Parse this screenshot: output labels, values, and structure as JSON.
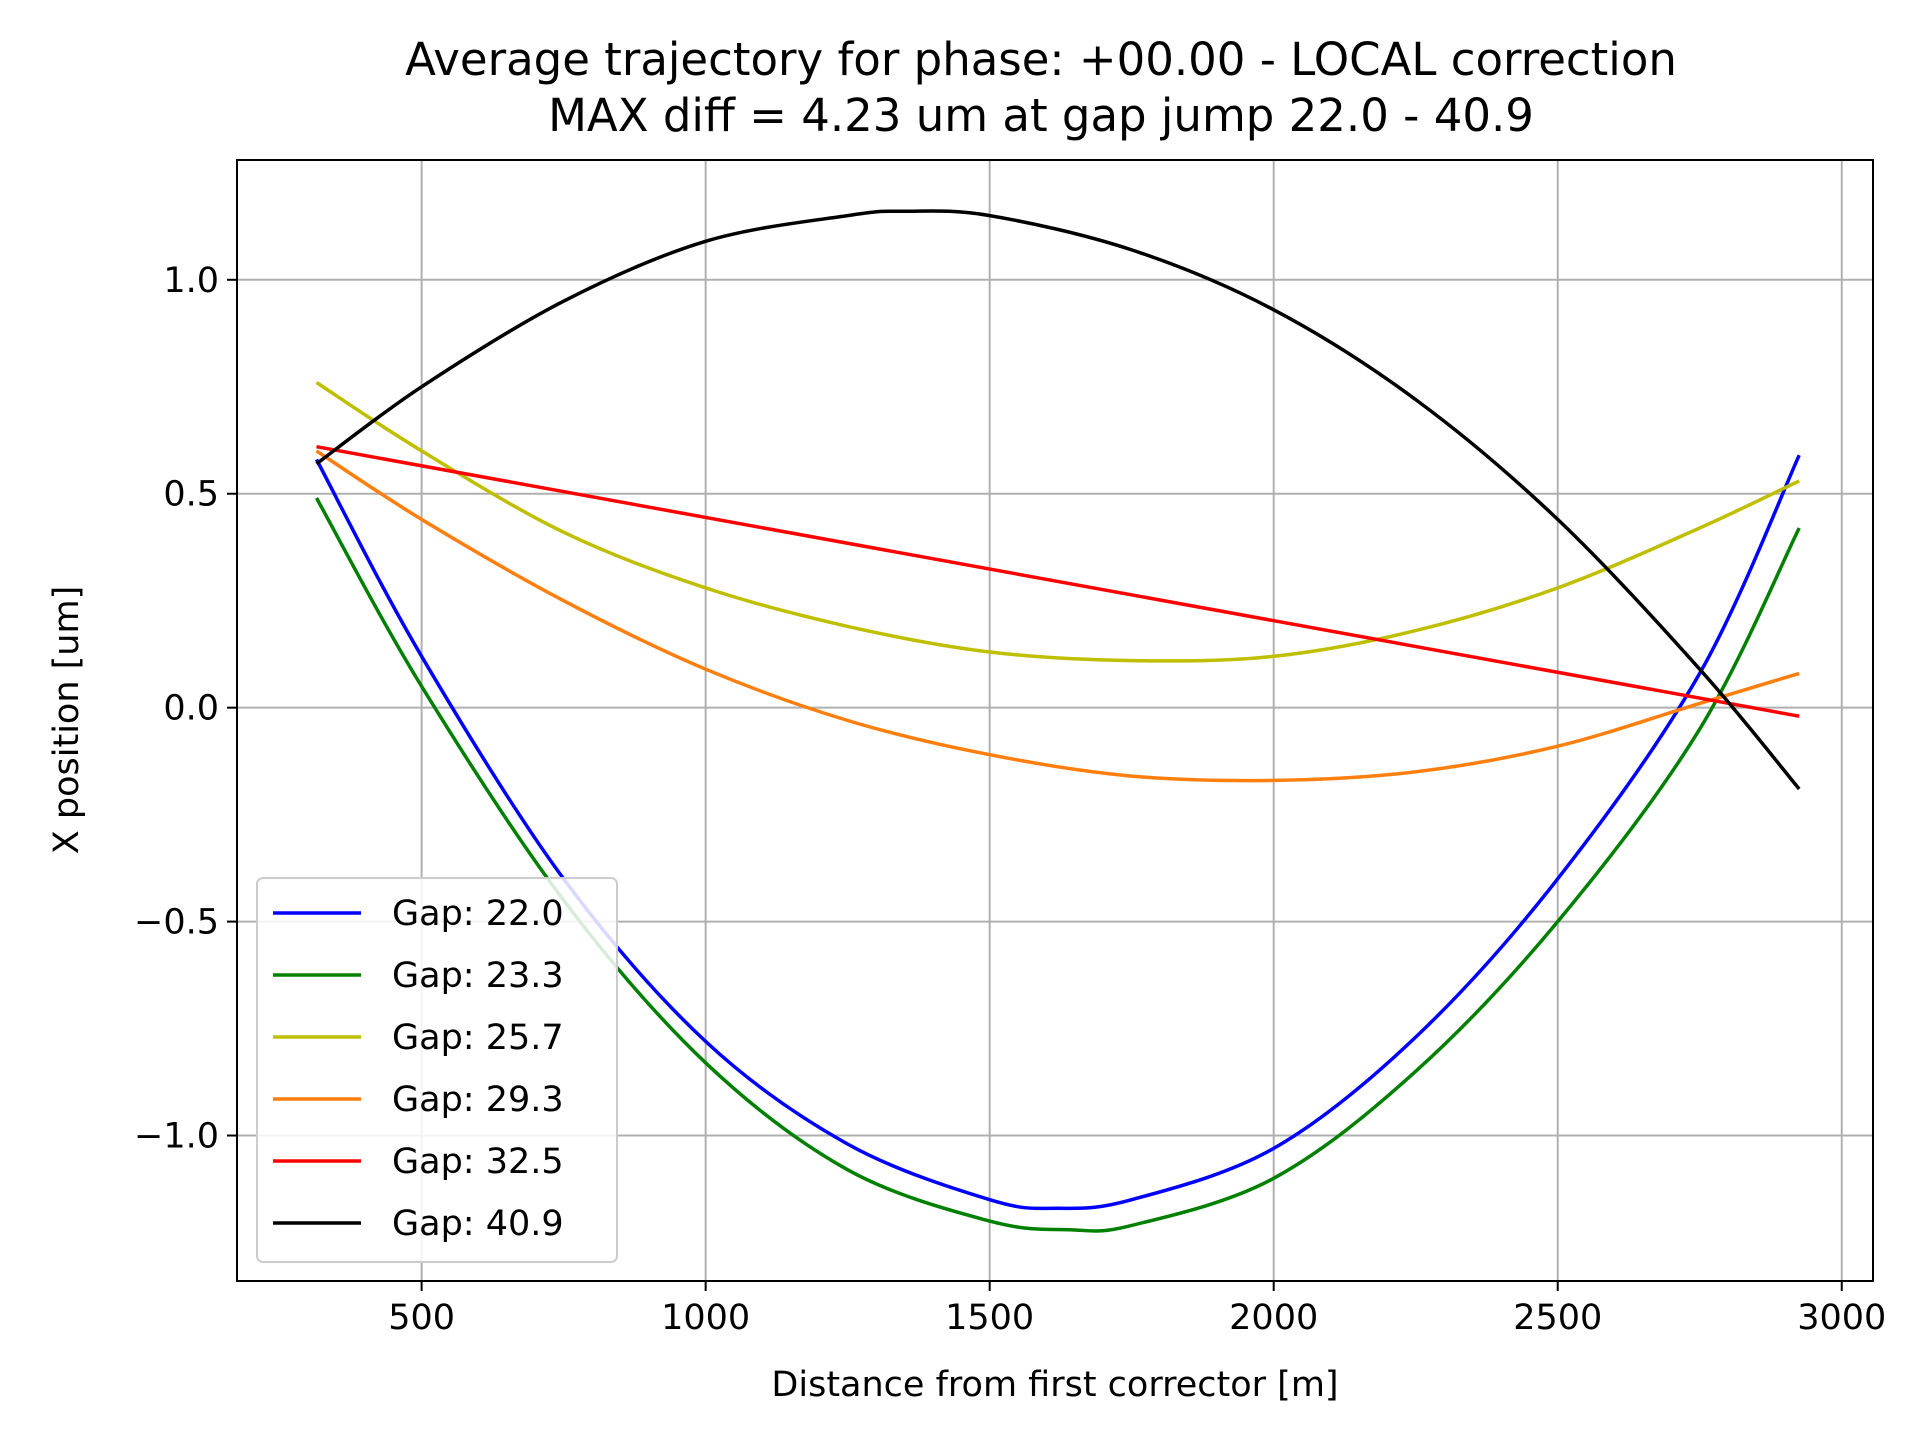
{
  "chart_data": {
    "type": "line",
    "title": "Average trajectory for phase: +00.00 - LOCAL correction",
    "subtitle": "MAX diff = 4.23 um at gap jump 22.0 - 40.9",
    "xlabel": "Distance from first corrector [m]",
    "ylabel": "X position [um]",
    "xlim": [
      175,
      3055
    ],
    "ylim": [
      -1.34,
      1.28
    ],
    "xticks": [
      500,
      1000,
      1500,
      2000,
      2500,
      3000
    ],
    "xtick_labels": [
      "500",
      "1000",
      "1500",
      "2000",
      "2500",
      "3000"
    ],
    "yticks": [
      1.0,
      0.5,
      0.0,
      -0.5,
      -1.0
    ],
    "ytick_labels": [
      "1.0",
      "0.5",
      "0.0",
      "−0.5",
      "−1.0"
    ],
    "grid": true,
    "legend_position": "lower-left",
    "series": [
      {
        "name": "Gap: 22.0",
        "color": "#0000ff",
        "x": [
          315,
          500,
          750,
          1000,
          1250,
          1500,
          1620,
          1750,
          2000,
          2250,
          2500,
          2750,
          2925
        ],
        "y": [
          0.58,
          0.12,
          -0.4,
          -0.78,
          -1.02,
          -1.15,
          -1.17,
          -1.15,
          -1.03,
          -0.77,
          -0.4,
          0.08,
          0.59
        ]
      },
      {
        "name": "Gap: 23.3",
        "color": "#008000",
        "x": [
          315,
          500,
          750,
          1000,
          1250,
          1500,
          1640,
          1750,
          2000,
          2250,
          2500,
          2750,
          2925
        ],
        "y": [
          0.49,
          0.05,
          -0.45,
          -0.83,
          -1.08,
          -1.2,
          -1.22,
          -1.21,
          -1.1,
          -0.85,
          -0.5,
          -0.05,
          0.42
        ]
      },
      {
        "name": "Gap: 25.7",
        "color": "#bfbf00",
        "x": [
          315,
          500,
          750,
          1000,
          1250,
          1500,
          1750,
          2000,
          2250,
          2500,
          2750,
          2925
        ],
        "y": [
          0.76,
          0.6,
          0.41,
          0.28,
          0.19,
          0.13,
          0.11,
          0.12,
          0.18,
          0.28,
          0.42,
          0.53
        ]
      },
      {
        "name": "Gap: 29.3",
        "color": "#ff7f0e",
        "x": [
          315,
          500,
          750,
          1000,
          1250,
          1500,
          1750,
          2000,
          2250,
          2500,
          2750,
          2925
        ],
        "y": [
          0.6,
          0.44,
          0.25,
          0.09,
          -0.03,
          -0.11,
          -0.16,
          -0.17,
          -0.15,
          -0.09,
          0.01,
          0.08
        ]
      },
      {
        "name": "Gap: 32.5",
        "color": "#ff0000",
        "x": [
          315,
          2925
        ],
        "y": [
          0.61,
          -0.02
        ]
      },
      {
        "name": "Gap: 40.9",
        "color": "#000000",
        "x": [
          315,
          500,
          750,
          1000,
          1250,
          1350,
          1500,
          1750,
          2000,
          2250,
          2500,
          2750,
          2925
        ],
        "y": [
          0.57,
          0.75,
          0.95,
          1.09,
          1.15,
          1.16,
          1.15,
          1.07,
          0.93,
          0.72,
          0.44,
          0.09,
          -0.19
        ]
      }
    ]
  }
}
